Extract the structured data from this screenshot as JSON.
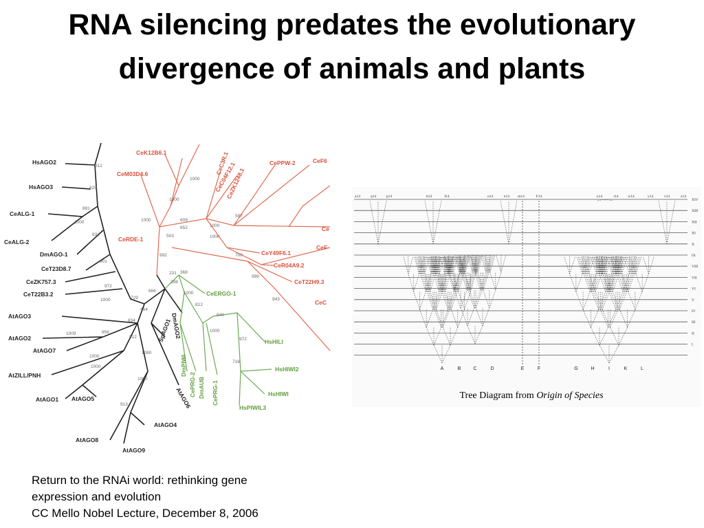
{
  "title": [
    "RNA silencing predates the evolutionary",
    "divergence of animals and plants"
  ],
  "phylogeny": {
    "leaves": [
      {
        "label": "HsAGO2",
        "color": "#222222"
      },
      {
        "label": "HsAGO3",
        "color": "#222222"
      },
      {
        "label": "CeALG-1",
        "color": "#222222"
      },
      {
        "label": "CeALG-2",
        "color": "#222222"
      },
      {
        "label": "DmAGO-1",
        "color": "#222222"
      },
      {
        "label": "CeT23D8.7",
        "color": "#222222"
      },
      {
        "label": "CeZK757.3",
        "color": "#222222"
      },
      {
        "label": "CeT22B3.2",
        "color": "#222222"
      },
      {
        "label": "AtAGO3",
        "color": "#222222"
      },
      {
        "label": "AtAGO2",
        "color": "#222222"
      },
      {
        "label": "AtAGO7",
        "color": "#222222"
      },
      {
        "label": "AtZILL/PNH",
        "color": "#222222"
      },
      {
        "label": "AtAGO1",
        "color": "#222222"
      },
      {
        "label": "AtAGO5",
        "color": "#222222"
      },
      {
        "label": "AtAGO4",
        "color": "#222222"
      },
      {
        "label": "AtAGO8",
        "color": "#222222"
      },
      {
        "label": "AtAGO9",
        "color": "#222222"
      },
      {
        "label": "DmAGO2",
        "color": "#222222"
      },
      {
        "label": "SpAGO1",
        "color": "#222222"
      },
      {
        "label": "AtAGO6",
        "color": "#222222"
      },
      {
        "label": "CeK12B6.1",
        "color": "#d9503a"
      },
      {
        "label": "CeM03D4.6",
        "color": "#d9503a"
      },
      {
        "label": "CeRDE-1",
        "color": "#d9503a"
      },
      {
        "label": "CeC3R.1",
        "color": "#d9503a"
      },
      {
        "label": "CeC04F12.1",
        "color": "#d9503a"
      },
      {
        "label": "CeZK1248.1",
        "color": "#d9503a"
      },
      {
        "label": "CePPW-2",
        "color": "#d9503a"
      },
      {
        "label": "CeF6",
        "color": "#d9503a"
      },
      {
        "label": "Ce",
        "color": "#d9503a"
      },
      {
        "label": "CeF",
        "color": "#d9503a"
      },
      {
        "label": "CeY49F6.1",
        "color": "#d9503a"
      },
      {
        "label": "CeR04A9.2",
        "color": "#d9503a"
      },
      {
        "label": "CeT22H9.3",
        "color": "#d9503a"
      },
      {
        "label": "CeC",
        "color": "#d9503a"
      },
      {
        "label": "CeERGO-1",
        "color": "#5f9e3a"
      },
      {
        "label": "HsHILI",
        "color": "#5f9e3a"
      },
      {
        "label": "HsHIWI2",
        "color": "#5f9e3a"
      },
      {
        "label": "HsHIWI",
        "color": "#5f9e3a"
      },
      {
        "label": "HsPIWIL3",
        "color": "#5f9e3a"
      },
      {
        "label": "DmPIWI",
        "color": "#5f9e3a"
      },
      {
        "label": "CePRG-2",
        "color": "#5f9e3a"
      },
      {
        "label": "DmAUB",
        "color": "#5f9e3a"
      },
      {
        "label": "CePRG-1",
        "color": "#5f9e3a"
      }
    ],
    "support": [
      "912",
      "629",
      "891",
      "1000",
      "833",
      "901",
      "972",
      "1000",
      "729",
      "666",
      "464",
      "398",
      "834",
      "956",
      "1009",
      "512",
      "1000",
      "1080",
      "1000",
      "1000",
      "913",
      "1000",
      "1000",
      "1000",
      "609",
      "652",
      "503",
      "992",
      "597",
      "1000",
      "1000",
      "700",
      "999",
      "943",
      "231",
      "368",
      "1000",
      "812",
      "840",
      "1000",
      "972",
      "716"
    ]
  },
  "darwin_tree": {
    "top_labels": [
      "a14",
      "q14",
      "p14",
      "b14",
      "f14",
      "o14",
      "e14",
      "m14",
      "F14",
      "n14",
      "r14",
      "w14",
      "y14",
      "v14",
      "z14"
    ],
    "generations": [
      "XIV",
      "XIII",
      "XII",
      "XI",
      "X",
      "IX",
      "VIII",
      "VII",
      "VI",
      "V",
      "IV",
      "III",
      "II",
      "I"
    ],
    "bottom_labels": [
      "A",
      "B",
      "C",
      "D",
      "E",
      "F",
      "G",
      "H",
      "I",
      "K",
      "L"
    ],
    "caption": {
      "text": "Tree Diagram from",
      "emphasis": "Origin of Species"
    }
  },
  "citation": [
    "Return to the RNAi world: rethinking gene",
    "expression and evolution",
    "CC Mello Nobel Lecture, December 8, 2006"
  ]
}
